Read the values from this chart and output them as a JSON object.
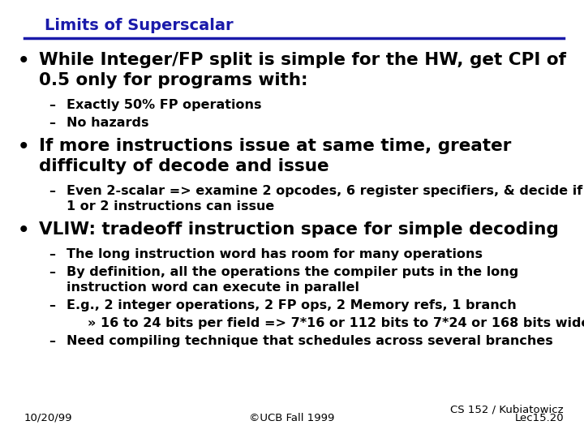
{
  "title": "Limits of Superscalar",
  "title_color": "#1a1aaa",
  "title_underline_color": "#1a1aaa",
  "background_color": "#ffffff",
  "footer_left": "10/20/99",
  "footer_center": "©UCB Fall 1999",
  "footer_right_line1": "CS 152 / Kubiatowicz",
  "footer_right_line2": "Lec15.20",
  "content": [
    {
      "level": 0,
      "lines": [
        "While Integer/FP split is simple for the HW, get CPI of",
        "0.5 only for programs with:"
      ],
      "fontsize": 15.5
    },
    {
      "level": 1,
      "lines": [
        "Exactly 50% FP operations"
      ],
      "fontsize": 11.5
    },
    {
      "level": 1,
      "lines": [
        "No hazards"
      ],
      "fontsize": 11.5
    },
    {
      "level": 0,
      "lines": [
        "If more instructions issue at same time, greater",
        "difficulty of decode and issue"
      ],
      "fontsize": 15.5
    },
    {
      "level": 1,
      "lines": [
        "Even 2-scalar => examine 2 opcodes, 6 register specifiers, & decide if",
        "1 or 2 instructions can issue"
      ],
      "fontsize": 11.5
    },
    {
      "level": 0,
      "lines": [
        "VLIW: tradeoff instruction space for simple decoding"
      ],
      "fontsize": 15.5
    },
    {
      "level": 1,
      "lines": [
        "The long instruction word has room for many operations"
      ],
      "fontsize": 11.5
    },
    {
      "level": 1,
      "lines": [
        "By definition, all the operations the compiler puts in the long",
        "instruction word can execute in parallel"
      ],
      "fontsize": 11.5
    },
    {
      "level": 1,
      "lines": [
        "E.g., 2 integer operations, 2 FP ops, 2 Memory refs, 1 branch"
      ],
      "fontsize": 11.5
    },
    {
      "level": 2,
      "lines": [
        "» 16 to 24 bits per field => 7*16 or 112 bits to 7*24 or 168 bits wide"
      ],
      "fontsize": 11.5
    },
    {
      "level": 1,
      "lines": [
        "Need compiling technique that schedules across several branches"
      ],
      "fontsize": 11.5
    }
  ]
}
